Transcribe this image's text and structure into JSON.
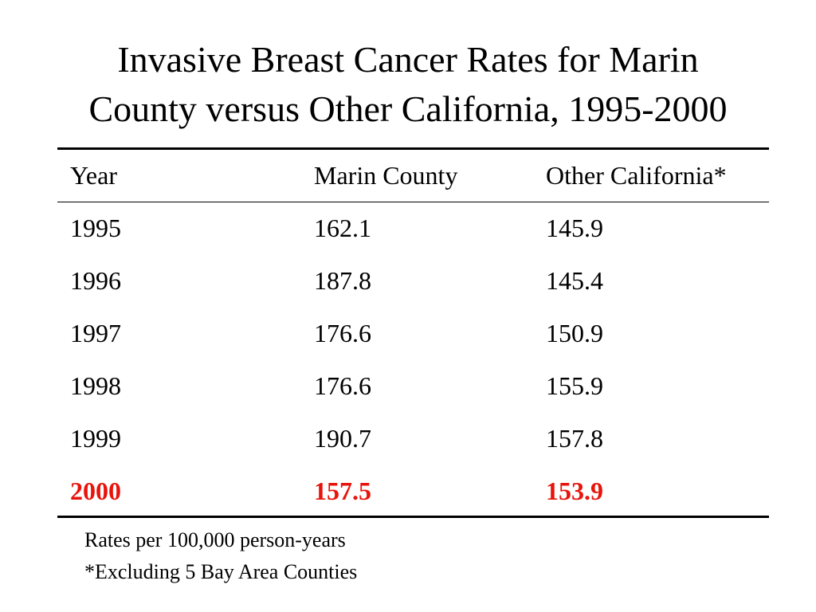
{
  "title_lines": [
    "Invasive Breast Cancer Rates for Marin",
    "County versus Other California, 1995-2000"
  ],
  "footnotes": [
    "Rates per 100,000 person-years",
    "*Excluding 5 Bay Area Counties"
  ],
  "colors": {
    "highlight": "#e8140c",
    "text": "#000000"
  },
  "chart_data": {
    "type": "table",
    "title": "Invasive Breast Cancer Rates for Marin County versus Other California, 1995-2000",
    "columns": [
      "Year",
      "Marin County",
      "Other California*"
    ],
    "rows": [
      [
        "1995",
        "162.1",
        "145.9"
      ],
      [
        "1996",
        "187.8",
        "145.4"
      ],
      [
        "1997",
        "176.6",
        "150.9"
      ],
      [
        "1998",
        "176.6",
        "155.9"
      ],
      [
        "1999",
        "190.7",
        "157.8"
      ],
      [
        "2000",
        "157.5",
        "153.9"
      ]
    ],
    "highlighted_rows": [
      "2000"
    ]
  }
}
